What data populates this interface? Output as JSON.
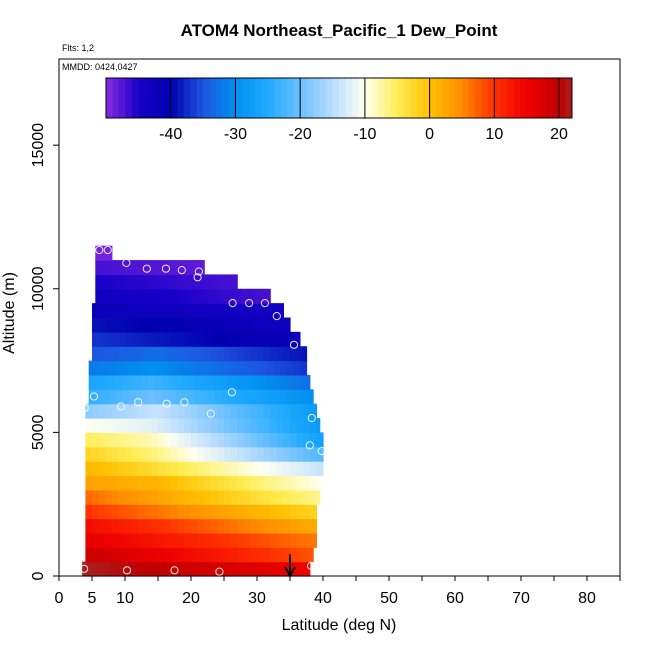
{
  "chart_data": {
    "type": "heatmap",
    "title": "ATOM4 Northeast_Pacific_1 Dew_Point",
    "flights_note": "Flts: 1,2",
    "dates_note": "MMDD: 0424,0427",
    "xlabel": "Latitude (deg N)",
    "ylabel": "Altitude (m)",
    "xlim": [
      0,
      85
    ],
    "ylim": [
      0,
      18000
    ],
    "xticks": [
      "0",
      "5",
      "10",
      "20",
      "30",
      "40",
      "50",
      "60",
      "70",
      "80"
    ],
    "xtick_values": [
      0,
      5,
      10,
      20,
      30,
      40,
      50,
      60,
      70,
      80
    ],
    "yticks": [
      "0",
      "5000",
      "10000",
      "15000"
    ],
    "ytick_values": [
      0,
      5000,
      10000,
      15000
    ],
    "colorbar": {
      "range": [
        -50,
        22
      ],
      "tick_labels": [
        "-40",
        "-30",
        "-20",
        "-10",
        "0",
        "10",
        "20"
      ],
      "tick_values": [
        -40,
        -30,
        -20,
        -10,
        0,
        10,
        20
      ]
    },
    "colormap_stops": [
      {
        "v": -50,
        "color": "#8a2be2"
      },
      {
        "v": -45,
        "color": "#1a00c8"
      },
      {
        "v": -40,
        "color": "#0000b0"
      },
      {
        "v": -35,
        "color": "#1e55e0"
      },
      {
        "v": -30,
        "color": "#0090f0"
      },
      {
        "v": -25,
        "color": "#20aaff"
      },
      {
        "v": -20,
        "color": "#6cc0ff"
      },
      {
        "v": -15,
        "color": "#b8dcff"
      },
      {
        "v": -10,
        "color": "#fffff0"
      },
      {
        "v": -5,
        "color": "#ffee55"
      },
      {
        "v": 0,
        "color": "#ffc000"
      },
      {
        "v": 5,
        "color": "#ff8c00"
      },
      {
        "v": 10,
        "color": "#ff3000"
      },
      {
        "v": 15,
        "color": "#f00000"
      },
      {
        "v": 20,
        "color": "#c00000"
      },
      {
        "v": 22,
        "color": "#a82020"
      }
    ],
    "altitude_bins": [
      {
        "alt": 250,
        "lat_min": 3.5,
        "lat_max": 38,
        "values": [
          [
            3.5,
            22
          ],
          [
            38,
            15
          ]
        ]
      },
      {
        "alt": 750,
        "lat_min": 4,
        "lat_max": 38.5,
        "values": [
          [
            4,
            19
          ],
          [
            38.5,
            8
          ]
        ]
      },
      {
        "alt": 1250,
        "lat_min": 4,
        "lat_max": 39,
        "values": [
          [
            4,
            16
          ],
          [
            39,
            6
          ]
        ]
      },
      {
        "alt": 1750,
        "lat_min": 4,
        "lat_max": 39,
        "values": [
          [
            4,
            14
          ],
          [
            39,
            2
          ]
        ]
      },
      {
        "alt": 2250,
        "lat_min": 4,
        "lat_max": 39,
        "values": [
          [
            4,
            10
          ],
          [
            39,
            -2
          ]
        ]
      },
      {
        "alt": 2750,
        "lat_min": 4,
        "lat_max": 39.5,
        "values": [
          [
            4,
            7
          ],
          [
            39.5,
            -7
          ]
        ]
      },
      {
        "alt": 3250,
        "lat_min": 4,
        "lat_max": 39.5,
        "values": [
          [
            4,
            3
          ],
          [
            15,
            1
          ],
          [
            39.5,
            -10
          ]
        ]
      },
      {
        "alt": 3750,
        "lat_min": 4,
        "lat_max": 40,
        "values": [
          [
            4,
            1
          ],
          [
            12,
            -2
          ],
          [
            40,
            -14
          ]
        ]
      },
      {
        "alt": 4250,
        "lat_min": 4,
        "lat_max": 40,
        "values": [
          [
            4,
            -2
          ],
          [
            14,
            -6
          ],
          [
            40,
            -22
          ]
        ]
      },
      {
        "alt": 4750,
        "lat_min": 4,
        "lat_max": 40,
        "values": [
          [
            4,
            -5
          ],
          [
            14,
            -8
          ],
          [
            40,
            -27
          ]
        ]
      },
      {
        "alt": 5250,
        "lat_min": 4,
        "lat_max": 39.5,
        "values": [
          [
            4,
            -10
          ],
          [
            14,
            -12
          ],
          [
            39.5,
            -28
          ]
        ]
      },
      {
        "alt": 5750,
        "lat_min": 4,
        "lat_max": 39,
        "values": [
          [
            4,
            -18
          ],
          [
            15,
            -14
          ],
          [
            39,
            -28
          ]
        ]
      },
      {
        "alt": 6250,
        "lat_min": 4.5,
        "lat_max": 38.5,
        "values": [
          [
            4.5,
            -24
          ],
          [
            14,
            -20
          ],
          [
            38.5,
            -30
          ]
        ]
      },
      {
        "alt": 6750,
        "lat_min": 4.5,
        "lat_max": 38,
        "values": [
          [
            4.5,
            -26
          ],
          [
            14,
            -23
          ],
          [
            38,
            -33
          ]
        ]
      },
      {
        "alt": 7250,
        "lat_min": 4.5,
        "lat_max": 37.5,
        "values": [
          [
            4.5,
            -32
          ],
          [
            14,
            -30
          ],
          [
            37.5,
            -37
          ]
        ]
      },
      {
        "alt": 7750,
        "lat_min": 5,
        "lat_max": 37.5,
        "values": [
          [
            5,
            -35
          ],
          [
            15,
            -33
          ],
          [
            37.5,
            -39
          ]
        ]
      },
      {
        "alt": 8250,
        "lat_min": 5,
        "lat_max": 36.5,
        "values": [
          [
            5,
            -37
          ],
          [
            36.5,
            -42
          ]
        ]
      },
      {
        "alt": 8750,
        "lat_min": 5,
        "lat_max": 35,
        "values": [
          [
            5,
            -39
          ],
          [
            35,
            -43
          ]
        ]
      },
      {
        "alt": 9250,
        "lat_min": 5,
        "lat_max": 34,
        "values": [
          [
            5,
            -42
          ],
          [
            34,
            -44
          ]
        ]
      },
      {
        "alt": 9750,
        "lat_min": 5.5,
        "lat_max": 32,
        "values": [
          [
            5.5,
            -43
          ],
          [
            24,
            -46
          ],
          [
            32,
            -47
          ]
        ]
      },
      {
        "alt": 10250,
        "lat_min": 5.5,
        "lat_max": 27,
        "values": [
          [
            5.5,
            -45
          ],
          [
            27,
            -47
          ]
        ]
      },
      {
        "alt": 10750,
        "lat_min": 5.5,
        "lat_max": 22,
        "values": [
          [
            5.5,
            -47
          ],
          [
            22,
            -48
          ]
        ]
      },
      {
        "alt": 11250,
        "lat_min": 5.5,
        "lat_max": 8,
        "values": [
          [
            5.5,
            -49
          ],
          [
            8,
            -49
          ]
        ]
      }
    ],
    "points": [
      {
        "x": 3.8,
        "y": 250
      },
      {
        "x": 10.3,
        "y": 200
      },
      {
        "x": 17.5,
        "y": 200
      },
      {
        "x": 24.3,
        "y": 150
      },
      {
        "x": 38.2,
        "y": 350
      },
      {
        "x": 3.9,
        "y": 5850
      },
      {
        "x": 5.3,
        "y": 6250
      },
      {
        "x": 9.4,
        "y": 5900
      },
      {
        "x": 12.0,
        "y": 6050
      },
      {
        "x": 16.3,
        "y": 6000
      },
      {
        "x": 19.0,
        "y": 6050
      },
      {
        "x": 23.0,
        "y": 5650
      },
      {
        "x": 26.2,
        "y": 6400
      },
      {
        "x": 38.3,
        "y": 5500
      },
      {
        "x": 38.0,
        "y": 4550
      },
      {
        "x": 39.8,
        "y": 4350
      },
      {
        "x": 6.1,
        "y": 11350
      },
      {
        "x": 7.4,
        "y": 11350
      },
      {
        "x": 10.2,
        "y": 10900
      },
      {
        "x": 13.3,
        "y": 10700
      },
      {
        "x": 16.2,
        "y": 10700
      },
      {
        "x": 18.6,
        "y": 10650
      },
      {
        "x": 21.2,
        "y": 10600
      },
      {
        "x": 21.0,
        "y": 10400
      },
      {
        "x": 26.3,
        "y": 9500
      },
      {
        "x": 28.8,
        "y": 9500
      },
      {
        "x": 31.2,
        "y": 9500
      },
      {
        "x": 33.0,
        "y": 9050
      },
      {
        "x": 35.6,
        "y": 8050
      }
    ],
    "arrow": {
      "lat": 35,
      "alt_top": 750,
      "alt_bottom": 0
    },
    "grid": false,
    "legend": "colorbar top"
  }
}
